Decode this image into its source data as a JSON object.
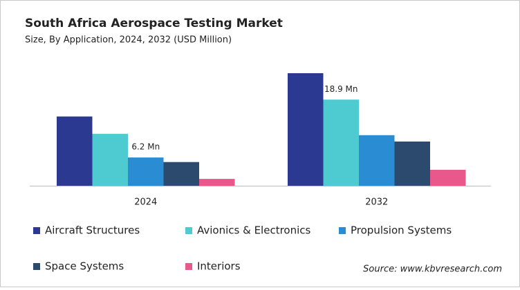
{
  "chart_data": {
    "type": "bar",
    "title": "South Africa Aerospace Testing Market",
    "subtitle": "Size, By Application, 2024, 2032 (USD Million)",
    "categories": [
      "2024",
      "2032"
    ],
    "series": [
      {
        "name": "Aircraft Structures",
        "color": "#2b3990",
        "values": [
          15.2,
          24.7
        ]
      },
      {
        "name": "Avionics & Electronics",
        "color": "#4ecbd1",
        "values": [
          11.4,
          18.9
        ],
        "value_labels": [
          null,
          "18.9 Mn"
        ]
      },
      {
        "name": "Propulsion Systems",
        "color": "#2a8dd4",
        "values": [
          6.2,
          11.1
        ],
        "value_labels": [
          "6.2 Mn",
          null
        ]
      },
      {
        "name": "Space Systems",
        "color": "#2c4a6e",
        "values": [
          5.2,
          9.7
        ]
      },
      {
        "name": "Interiors",
        "color": "#e8588a",
        "values": [
          1.5,
          3.5
        ]
      }
    ],
    "source": "Source: www.kbvresearch.com"
  }
}
